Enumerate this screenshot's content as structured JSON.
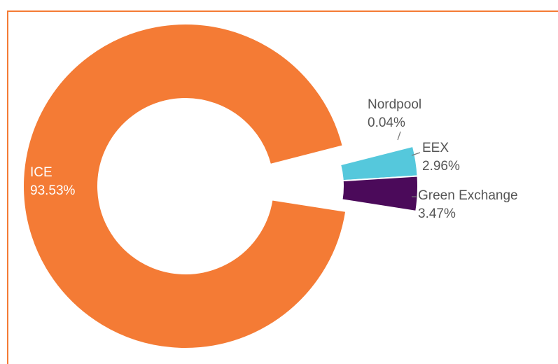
{
  "chart_data": {
    "type": "donut",
    "categories": [
      "ICE",
      "Nordpool",
      "EEX",
      "Green Exchange"
    ],
    "values": [
      93.53,
      0.04,
      2.96,
      3.47
    ],
    "value_labels": [
      "93.53%",
      "0.04%",
      "2.96%",
      "3.47%"
    ],
    "colors": [
      "#f47b35",
      "#555555",
      "#55c8dc",
      "#4b0a5a"
    ]
  }
}
